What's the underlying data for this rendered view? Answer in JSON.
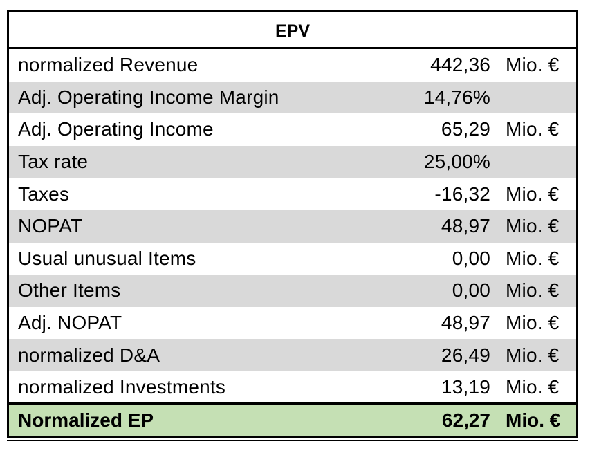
{
  "table": {
    "title": "EPV",
    "rows": [
      {
        "label": "normalized Revenue",
        "value": "442,36",
        "unit": "Mio. €"
      },
      {
        "label": "Adj. Operating Income Margin",
        "value": "14,76%",
        "unit": ""
      },
      {
        "label": "Adj. Operating Income",
        "value": "65,29",
        "unit": "Mio. €"
      },
      {
        "label": "Tax rate",
        "value": "25,00%",
        "unit": ""
      },
      {
        "label": "Taxes",
        "value": "-16,32",
        "unit": "Mio. €"
      },
      {
        "label": "NOPAT",
        "value": "48,97",
        "unit": "Mio. €"
      },
      {
        "label": "Usual unusual Items",
        "value": "0,00",
        "unit": "Mio. €"
      },
      {
        "label": "Other Items",
        "value": "0,00",
        "unit": "Mio. €"
      },
      {
        "label": "Adj. NOPAT",
        "value": "48,97",
        "unit": "Mio. €"
      },
      {
        "label": "normalized D&A",
        "value": "26,49",
        "unit": "Mio. €"
      },
      {
        "label": "normalized Investments",
        "value": "13,19",
        "unit": "Mio. €"
      }
    ],
    "total": {
      "label": "Normalized EP",
      "value": "62,27",
      "unit": "Mio. €"
    },
    "colors": {
      "row_shade": "#d9d9d9",
      "total_fill": "#c5e0b4",
      "border": "#000000"
    }
  }
}
